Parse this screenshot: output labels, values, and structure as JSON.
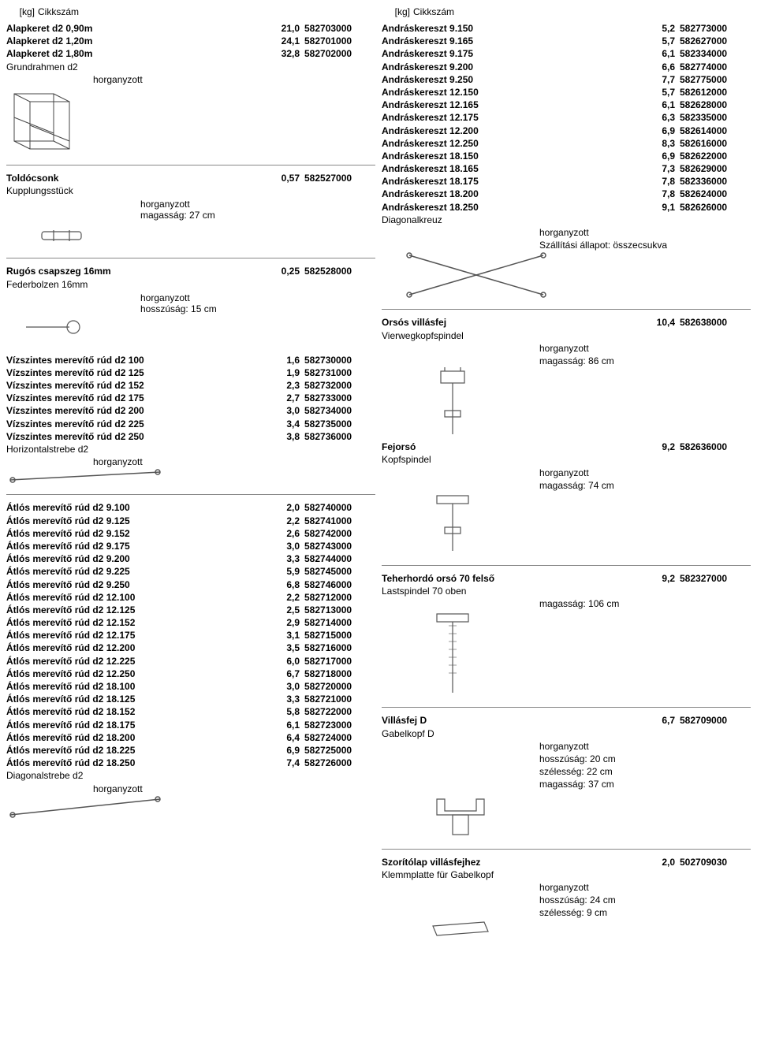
{
  "header": {
    "kg": "[kg]",
    "cikkszam": "Cikkszám"
  },
  "left": {
    "alapkeret": [
      {
        "name": "Alapkeret d2 0,90m",
        "kg": "21,0",
        "art": "582703000"
      },
      {
        "name": "Alapkeret d2 1,20m",
        "kg": "24,1",
        "art": "582701000"
      },
      {
        "name": "Alapkeret d2 1,80m",
        "kg": "32,8",
        "art": "582702000"
      }
    ],
    "alapkeret_sub": "Grundrahmen d2",
    "alapkeret_note": "horganyzott",
    "toldocsonk": {
      "name": "Toldócsonk",
      "kg": "0,57",
      "art": "582527000",
      "sub": "Kupplungsstück",
      "note1": "horganyzott",
      "note2": "magasság: 27 cm"
    },
    "rugos": {
      "name": "Rugós csapszeg 16mm",
      "kg": "0,25",
      "art": "582528000",
      "sub": "Federbolzen 16mm",
      "note1": "horganyzott",
      "note2": "hosszúság: 15 cm"
    },
    "vizszintes": [
      {
        "name": "Vízszintes merevítő rúd d2 100",
        "kg": "1,6",
        "art": "582730000"
      },
      {
        "name": "Vízszintes merevítő rúd d2 125",
        "kg": "1,9",
        "art": "582731000"
      },
      {
        "name": "Vízszintes merevítő rúd d2 152",
        "kg": "2,3",
        "art": "582732000"
      },
      {
        "name": "Vízszintes merevítő rúd d2 175",
        "kg": "2,7",
        "art": "582733000"
      },
      {
        "name": "Vízszintes merevítő rúd d2 200",
        "kg": "3,0",
        "art": "582734000"
      },
      {
        "name": "Vízszintes merevítő rúd d2 225",
        "kg": "3,4",
        "art": "582735000"
      },
      {
        "name": "Vízszintes merevítő rúd d2 250",
        "kg": "3,8",
        "art": "582736000"
      }
    ],
    "vizszintes_sub": "Horizontalstrebe d2",
    "vizszintes_note": "horganyzott",
    "atlos": [
      {
        "name": "Átlós merevítő rúd d2 9.100",
        "kg": "2,0",
        "art": "582740000"
      },
      {
        "name": "Átlós merevítő rúd d2 9.125",
        "kg": "2,2",
        "art": "582741000"
      },
      {
        "name": "Átlós merevítő rúd d2 9.152",
        "kg": "2,6",
        "art": "582742000"
      },
      {
        "name": "Átlós merevítő rúd d2 9.175",
        "kg": "3,0",
        "art": "582743000"
      },
      {
        "name": "Átlós merevítő rúd d2 9.200",
        "kg": "3,3",
        "art": "582744000"
      },
      {
        "name": "Átlós merevítő rúd d2 9.225",
        "kg": "5,9",
        "art": "582745000"
      },
      {
        "name": "Átlós merevítő rúd d2 9.250",
        "kg": "6,8",
        "art": "582746000"
      },
      {
        "name": "Átlós merevítő rúd d2 12.100",
        "kg": "2,2",
        "art": "582712000"
      },
      {
        "name": "Átlós merevítő rúd d2 12.125",
        "kg": "2,5",
        "art": "582713000"
      },
      {
        "name": "Átlós merevítő rúd d2 12.152",
        "kg": "2,9",
        "art": "582714000"
      },
      {
        "name": "Átlós merevítő rúd d2 12.175",
        "kg": "3,1",
        "art": "582715000"
      },
      {
        "name": "Átlós merevítő rúd d2 12.200",
        "kg": "3,5",
        "art": "582716000"
      },
      {
        "name": "Átlós merevítő rúd d2 12.225",
        "kg": "6,0",
        "art": "582717000"
      },
      {
        "name": "Átlós merevítő rúd d2 12.250",
        "kg": "6,7",
        "art": "582718000"
      },
      {
        "name": "Átlós merevítő rúd d2 18.100",
        "kg": "3,0",
        "art": "582720000"
      },
      {
        "name": "Átlós merevítő rúd d2 18.125",
        "kg": "3,3",
        "art": "582721000"
      },
      {
        "name": "Átlós merevítő rúd d2 18.152",
        "kg": "5,8",
        "art": "582722000"
      },
      {
        "name": "Átlós merevítő rúd d2 18.175",
        "kg": "6,1",
        "art": "582723000"
      },
      {
        "name": "Átlós merevítő rúd d2 18.200",
        "kg": "6,4",
        "art": "582724000"
      },
      {
        "name": "Átlós merevítő rúd d2 18.225",
        "kg": "6,9",
        "art": "582725000"
      },
      {
        "name": "Átlós merevítő rúd d2 18.250",
        "kg": "7,4",
        "art": "582726000"
      }
    ],
    "atlos_sub": "Diagonalstrebe d2",
    "atlos_note": "horganyzott"
  },
  "right": {
    "andras": [
      {
        "name": "Andráskereszt 9.150",
        "kg": "5,2",
        "art": "582773000"
      },
      {
        "name": "Andráskereszt 9.165",
        "kg": "5,7",
        "art": "582627000"
      },
      {
        "name": "Andráskereszt 9.175",
        "kg": "6,1",
        "art": "582334000"
      },
      {
        "name": "Andráskereszt 9.200",
        "kg": "6,6",
        "art": "582774000"
      },
      {
        "name": "Andráskereszt 9.250",
        "kg": "7,7",
        "art": "582775000"
      },
      {
        "name": "Andráskereszt 12.150",
        "kg": "5,7",
        "art": "582612000"
      },
      {
        "name": "Andráskereszt 12.165",
        "kg": "6,1",
        "art": "582628000"
      },
      {
        "name": "Andráskereszt 12.175",
        "kg": "6,3",
        "art": "582335000"
      },
      {
        "name": "Andráskereszt 12.200",
        "kg": "6,9",
        "art": "582614000"
      },
      {
        "name": "Andráskereszt 12.250",
        "kg": "8,3",
        "art": "582616000"
      },
      {
        "name": "Andráskereszt 18.150",
        "kg": "6,9",
        "art": "582622000"
      },
      {
        "name": "Andráskereszt 18.165",
        "kg": "7,3",
        "art": "582629000"
      },
      {
        "name": "Andráskereszt 18.175",
        "kg": "7,8",
        "art": "582336000"
      },
      {
        "name": "Andráskereszt 18.200",
        "kg": "7,8",
        "art": "582624000"
      },
      {
        "name": "Andráskereszt 18.250",
        "kg": "9,1",
        "art": "582626000"
      }
    ],
    "andras_sub": "Diagonalkreuz",
    "andras_note1": "horganyzott",
    "andras_note2": "Szállítási állapot: összecsukva",
    "orsos": {
      "name": "Orsós villásfej",
      "kg": "10,4",
      "art": "582638000",
      "sub": "Vierwegkopfspindel",
      "note1": "horganyzott",
      "note2": "magasság: 86 cm"
    },
    "fejorso": {
      "name": "Fejorsó",
      "kg": "9,2",
      "art": "582636000",
      "sub": "Kopfspindel",
      "note1": "horganyzott",
      "note2": "magasság: 74 cm"
    },
    "teher": {
      "name": "Teherhordó orsó 70 felső",
      "kg": "9,2",
      "art": "582327000",
      "sub": "Lastspindel 70 oben",
      "note1": "magasság: 106 cm"
    },
    "villasfej": {
      "name": "Villásfej D",
      "kg": "6,7",
      "art": "582709000",
      "sub": "Gabelkopf D",
      "note1": "horganyzott",
      "note2": "hosszúság: 20 cm",
      "note3": "szélesség: 22 cm",
      "note4": "magasság: 37 cm"
    },
    "szorito": {
      "name": "Szorítólap villásfejhez",
      "kg": "2,0",
      "art": "502709030",
      "sub": "Klemmplatte für Gabelkopf",
      "note1": "horganyzott",
      "note2": "hosszúság: 24 cm",
      "note3": "szélesség: 9 cm"
    }
  }
}
